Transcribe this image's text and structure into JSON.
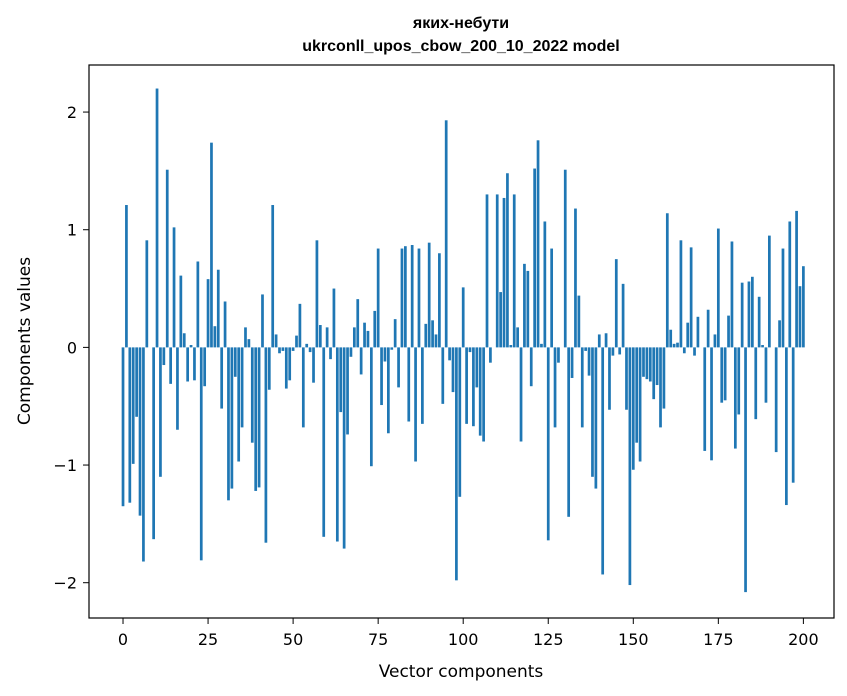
{
  "chart_data": {
    "type": "bar",
    "title_line1": "яких-небути",
    "title_line2": "ukrconll_upos_cbow_200_10_2022 model",
    "xlabel": "Vector components",
    "ylabel": "Components values",
    "xlim": [
      -10,
      209
    ],
    "ylim": [
      -2.3,
      2.4
    ],
    "x_ticks": [
      0,
      25,
      50,
      75,
      100,
      125,
      150,
      175,
      200
    ],
    "x_tick_labels": [
      "0",
      "25",
      "50",
      "75",
      "100",
      "125",
      "150",
      "175",
      "200"
    ],
    "y_ticks": [
      -2,
      -1,
      0,
      1,
      2
    ],
    "y_tick_labels": [
      "−2",
      "−1",
      "0",
      "1",
      "2"
    ],
    "bar_color": "#1f77b4",
    "grid": false,
    "values": [
      -1.35,
      1.21,
      -1.32,
      -0.99,
      -0.59,
      -1.43,
      -1.82,
      0.91,
      0.0,
      -1.63,
      2.2,
      -1.1,
      -0.15,
      1.51,
      -0.31,
      1.02,
      -0.7,
      0.61,
      0.12,
      -0.29,
      0.02,
      -0.28,
      0.73,
      -1.81,
      -0.33,
      0.58,
      1.74,
      0.18,
      0.66,
      -0.52,
      0.39,
      -1.3,
      -1.2,
      -0.25,
      -0.97,
      -0.68,
      0.17,
      0.07,
      -0.81,
      -1.22,
      -1.19,
      0.45,
      -1.66,
      -0.36,
      1.21,
      0.11,
      -0.05,
      -0.03,
      -0.35,
      -0.28,
      -0.03,
      0.1,
      0.37,
      -0.68,
      0.03,
      -0.04,
      -0.3,
      0.91,
      0.19,
      -1.61,
      0.17,
      -0.1,
      0.5,
      -1.65,
      -0.55,
      -1.71,
      -0.74,
      -0.08,
      0.17,
      0.41,
      -0.23,
      0.21,
      0.14,
      -1.01,
      0.31,
      0.84,
      -0.49,
      -0.12,
      -0.73,
      -0.02,
      0.24,
      -0.34,
      0.84,
      0.86,
      -0.63,
      0.87,
      -0.97,
      0.84,
      -0.65,
      0.2,
      0.89,
      0.23,
      0.11,
      0.8,
      -0.48,
      1.93,
      -0.11,
      -0.38,
      -1.98,
      -1.27,
      0.51,
      -0.65,
      -0.04,
      -0.67,
      -0.34,
      -0.75,
      -0.8,
      1.3,
      -0.13,
      0.0,
      1.3,
      0.47,
      1.27,
      1.48,
      0.02,
      1.3,
      0.17,
      -0.8,
      0.71,
      0.65,
      -0.33,
      1.52,
      1.76,
      0.03,
      1.07,
      -1.64,
      0.84,
      -0.68,
      -0.13,
      0.0,
      1.51,
      -1.44,
      -0.26,
      1.18,
      0.44,
      -0.68,
      -0.03,
      -0.24,
      -1.1,
      -1.2,
      0.11,
      -1.93,
      0.12,
      -0.53,
      -0.07,
      0.75,
      -0.06,
      0.54,
      -0.53,
      -2.02,
      -1.04,
      -0.81,
      -0.97,
      -0.25,
      -0.27,
      -0.29,
      -0.44,
      -0.32,
      -0.68,
      -0.52,
      1.14,
      0.15,
      0.03,
      0.04,
      0.91,
      -0.05,
      0.21,
      0.85,
      -0.07,
      0.26,
      0.0,
      -0.88,
      0.32,
      -0.96,
      0.11,
      1.01,
      -0.47,
      -0.45,
      0.27,
      0.9,
      -0.86,
      -0.57,
      0.55,
      -2.08,
      0.56,
      0.6,
      -0.61,
      0.43,
      0.02,
      -0.47,
      0.95,
      0.0,
      -0.89,
      0.23,
      0.84,
      -1.34,
      1.07,
      -1.15,
      1.16,
      0.52,
      0.69
    ]
  }
}
